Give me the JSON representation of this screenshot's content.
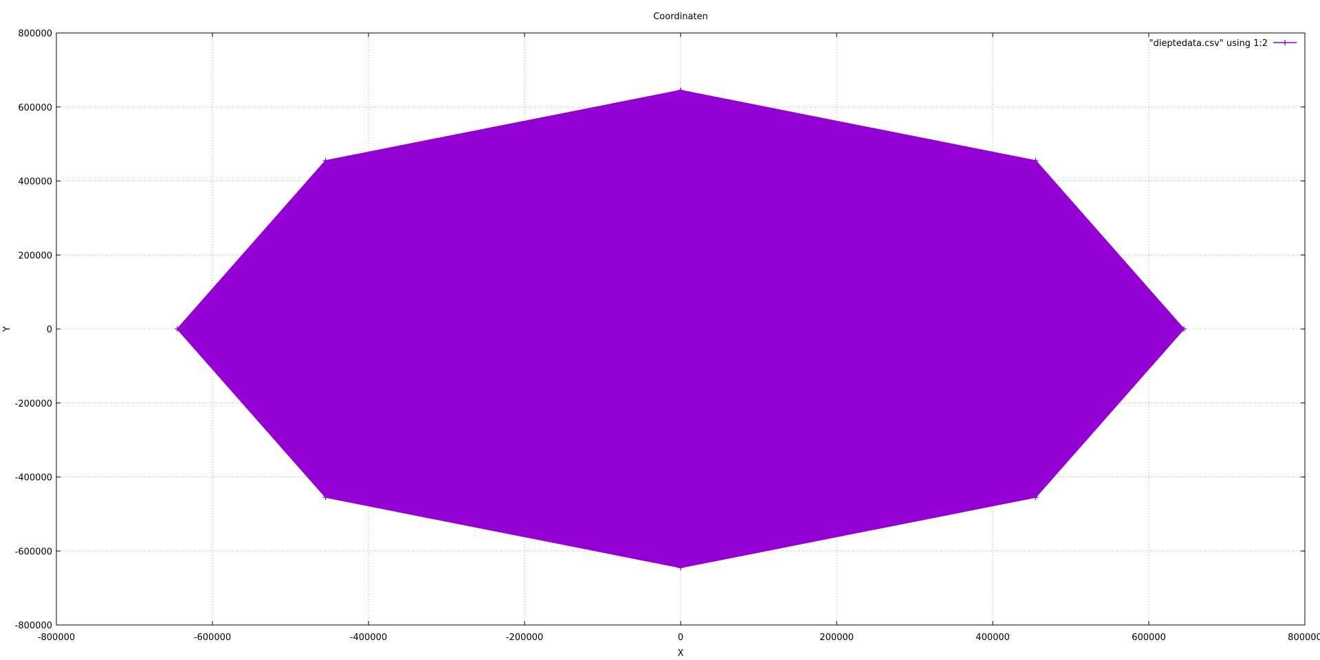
{
  "chart_data": {
    "type": "line",
    "title": "Coordinaten",
    "xlabel": "X",
    "ylabel": "Y",
    "xlim": [
      -800000,
      800000
    ],
    "ylim": [
      -800000,
      800000
    ],
    "x_ticks": [
      -800000,
      -600000,
      -400000,
      -200000,
      0,
      200000,
      400000,
      600000,
      800000
    ],
    "y_ticks": [
      -800000,
      -600000,
      -400000,
      -200000,
      0,
      200000,
      400000,
      600000,
      800000
    ],
    "x_tick_labels": [
      "-800000",
      "-600000",
      "-400000",
      "-200000",
      "0",
      "200000",
      "400000",
      "600000",
      "800000"
    ],
    "y_tick_labels": [
      "-800000",
      "-600000",
      "-400000",
      "-200000",
      "0",
      "200000",
      "400000",
      "600000",
      "800000"
    ],
    "grid": true,
    "legend_position": "top-right",
    "series": [
      {
        "name": "\"dieptedata.csv\" using 1:2",
        "color": "#9400d3",
        "x": [
          0,
          455000,
          645000,
          455000,
          0,
          -455000,
          -645000,
          -455000,
          0
        ],
        "y": [
          645000,
          455000,
          0,
          -455000,
          -645000,
          -455000,
          0,
          455000,
          645000
        ]
      }
    ]
  }
}
